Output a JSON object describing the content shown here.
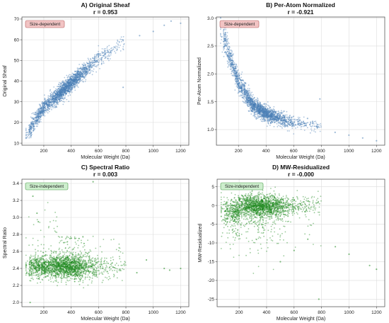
{
  "chart_data": [
    {
      "id": "A",
      "type": "scatter",
      "title": "A) Original Sheaf",
      "annotation": "r = 0.953",
      "badge": "Size-dependent",
      "badge_type": "dependent",
      "xlabel": "Molecular Weight (Da)",
      "ylabel": "Original Sheaf",
      "xlim": [
        40,
        1260
      ],
      "ylim": [
        9,
        71
      ],
      "xticks": [
        200,
        400,
        600,
        800,
        1000,
        1200
      ],
      "yticks": [
        10,
        20,
        30,
        40,
        50,
        60,
        70
      ],
      "grid": true,
      "point_color": "#4a7fb5",
      "trend": {
        "form": "sqrt",
        "x": [
          80,
          200,
          400,
          600,
          800
        ],
        "y": [
          15,
          27,
          39,
          51,
          60
        ],
        "spread": 3.2
      },
      "outliers": [
        [
          780,
          37
        ],
        [
          900,
          62
        ],
        [
          1080,
          67
        ],
        [
          1130,
          69
        ],
        [
          1200,
          68
        ],
        [
          1000,
          64
        ]
      ]
    },
    {
      "id": "B",
      "type": "scatter",
      "title": "B) Per-Atom Normalized",
      "annotation": "r = -0.921",
      "badge": "Size-dependent",
      "badge_type": "dependent",
      "xlabel": "Molecular Weight (Da)",
      "ylabel": "Per-Atom Normalized",
      "xlim": [
        40,
        1260
      ],
      "ylim": [
        0.72,
        3.02
      ],
      "xticks": [
        200,
        400,
        600,
        800,
        1000,
        1200
      ],
      "yticks": [
        1.0,
        1.5,
        2.0,
        2.5,
        3.0
      ],
      "grid": true,
      "point_color": "#4a7fb5",
      "trend": {
        "form": "decay",
        "x": [
          100,
          200,
          300,
          400,
          600,
          800
        ],
        "y": [
          2.6,
          1.85,
          1.45,
          1.28,
          1.12,
          1.05
        ],
        "spread": 0.12
      },
      "outliers": [
        [
          790,
          1.55
        ],
        [
          1000,
          0.9
        ],
        [
          1100,
          0.85
        ],
        [
          1200,
          0.8
        ],
        [
          900,
          0.95
        ],
        [
          700,
          1.2
        ]
      ]
    },
    {
      "id": "C",
      "type": "scatter",
      "title": "C) Spectral Ratio",
      "annotation": "r = 0.003",
      "badge": "Size-independent",
      "badge_type": "independent",
      "xlabel": "Molecular Weight (Da)",
      "ylabel": "Spectral Ratio",
      "xlim": [
        40,
        1260
      ],
      "ylim": [
        1.95,
        3.45
      ],
      "xticks": [
        200,
        400,
        600,
        800,
        1000,
        1200
      ],
      "yticks": [
        2.0,
        2.2,
        2.4,
        2.6,
        2.8,
        3.0,
        3.2,
        3.4
      ],
      "grid": true,
      "point_color": "#1f8a1f",
      "trend": {
        "form": "flat",
        "x": [
          100,
          1200
        ],
        "y": [
          2.42,
          2.42
        ],
        "spread": 0.12
      },
      "outliers": [
        [
          100,
          2.0
        ],
        [
          880,
          2.35
        ],
        [
          1080,
          2.4
        ],
        [
          1120,
          2.38
        ],
        [
          1200,
          2.4
        ],
        [
          560,
          3.42
        ],
        [
          120,
          3.25
        ],
        [
          150,
          3.05
        ],
        [
          160,
          2.95
        ],
        [
          950,
          2.5
        ]
      ]
    },
    {
      "id": "D",
      "type": "scatter",
      "title": "D) MW-Residualized",
      "annotation": "r = -0.000",
      "badge": "Size-independent",
      "badge_type": "independent",
      "xlabel": "Molecular Weight (Da)",
      "ylabel": "MW-Residualized",
      "xlim": [
        40,
        1260
      ],
      "ylim": [
        -27,
        7
      ],
      "xticks": [
        200,
        400,
        600,
        800,
        1000,
        1200
      ],
      "yticks": [
        -25,
        -20,
        -15,
        -10,
        -5,
        0,
        5
      ],
      "grid": true,
      "point_color": "#1f8a1f",
      "trend": {
        "form": "flat",
        "x": [
          100,
          1200
        ],
        "y": [
          0,
          0
        ],
        "spread": 2.4
      },
      "outliers": [
        [
          780,
          -25
        ],
        [
          900,
          -11
        ],
        [
          1000,
          -13
        ],
        [
          1150,
          -16
        ],
        [
          1200,
          -17
        ],
        [
          500,
          -15
        ],
        [
          600,
          -12
        ],
        [
          700,
          -9
        ]
      ]
    }
  ]
}
